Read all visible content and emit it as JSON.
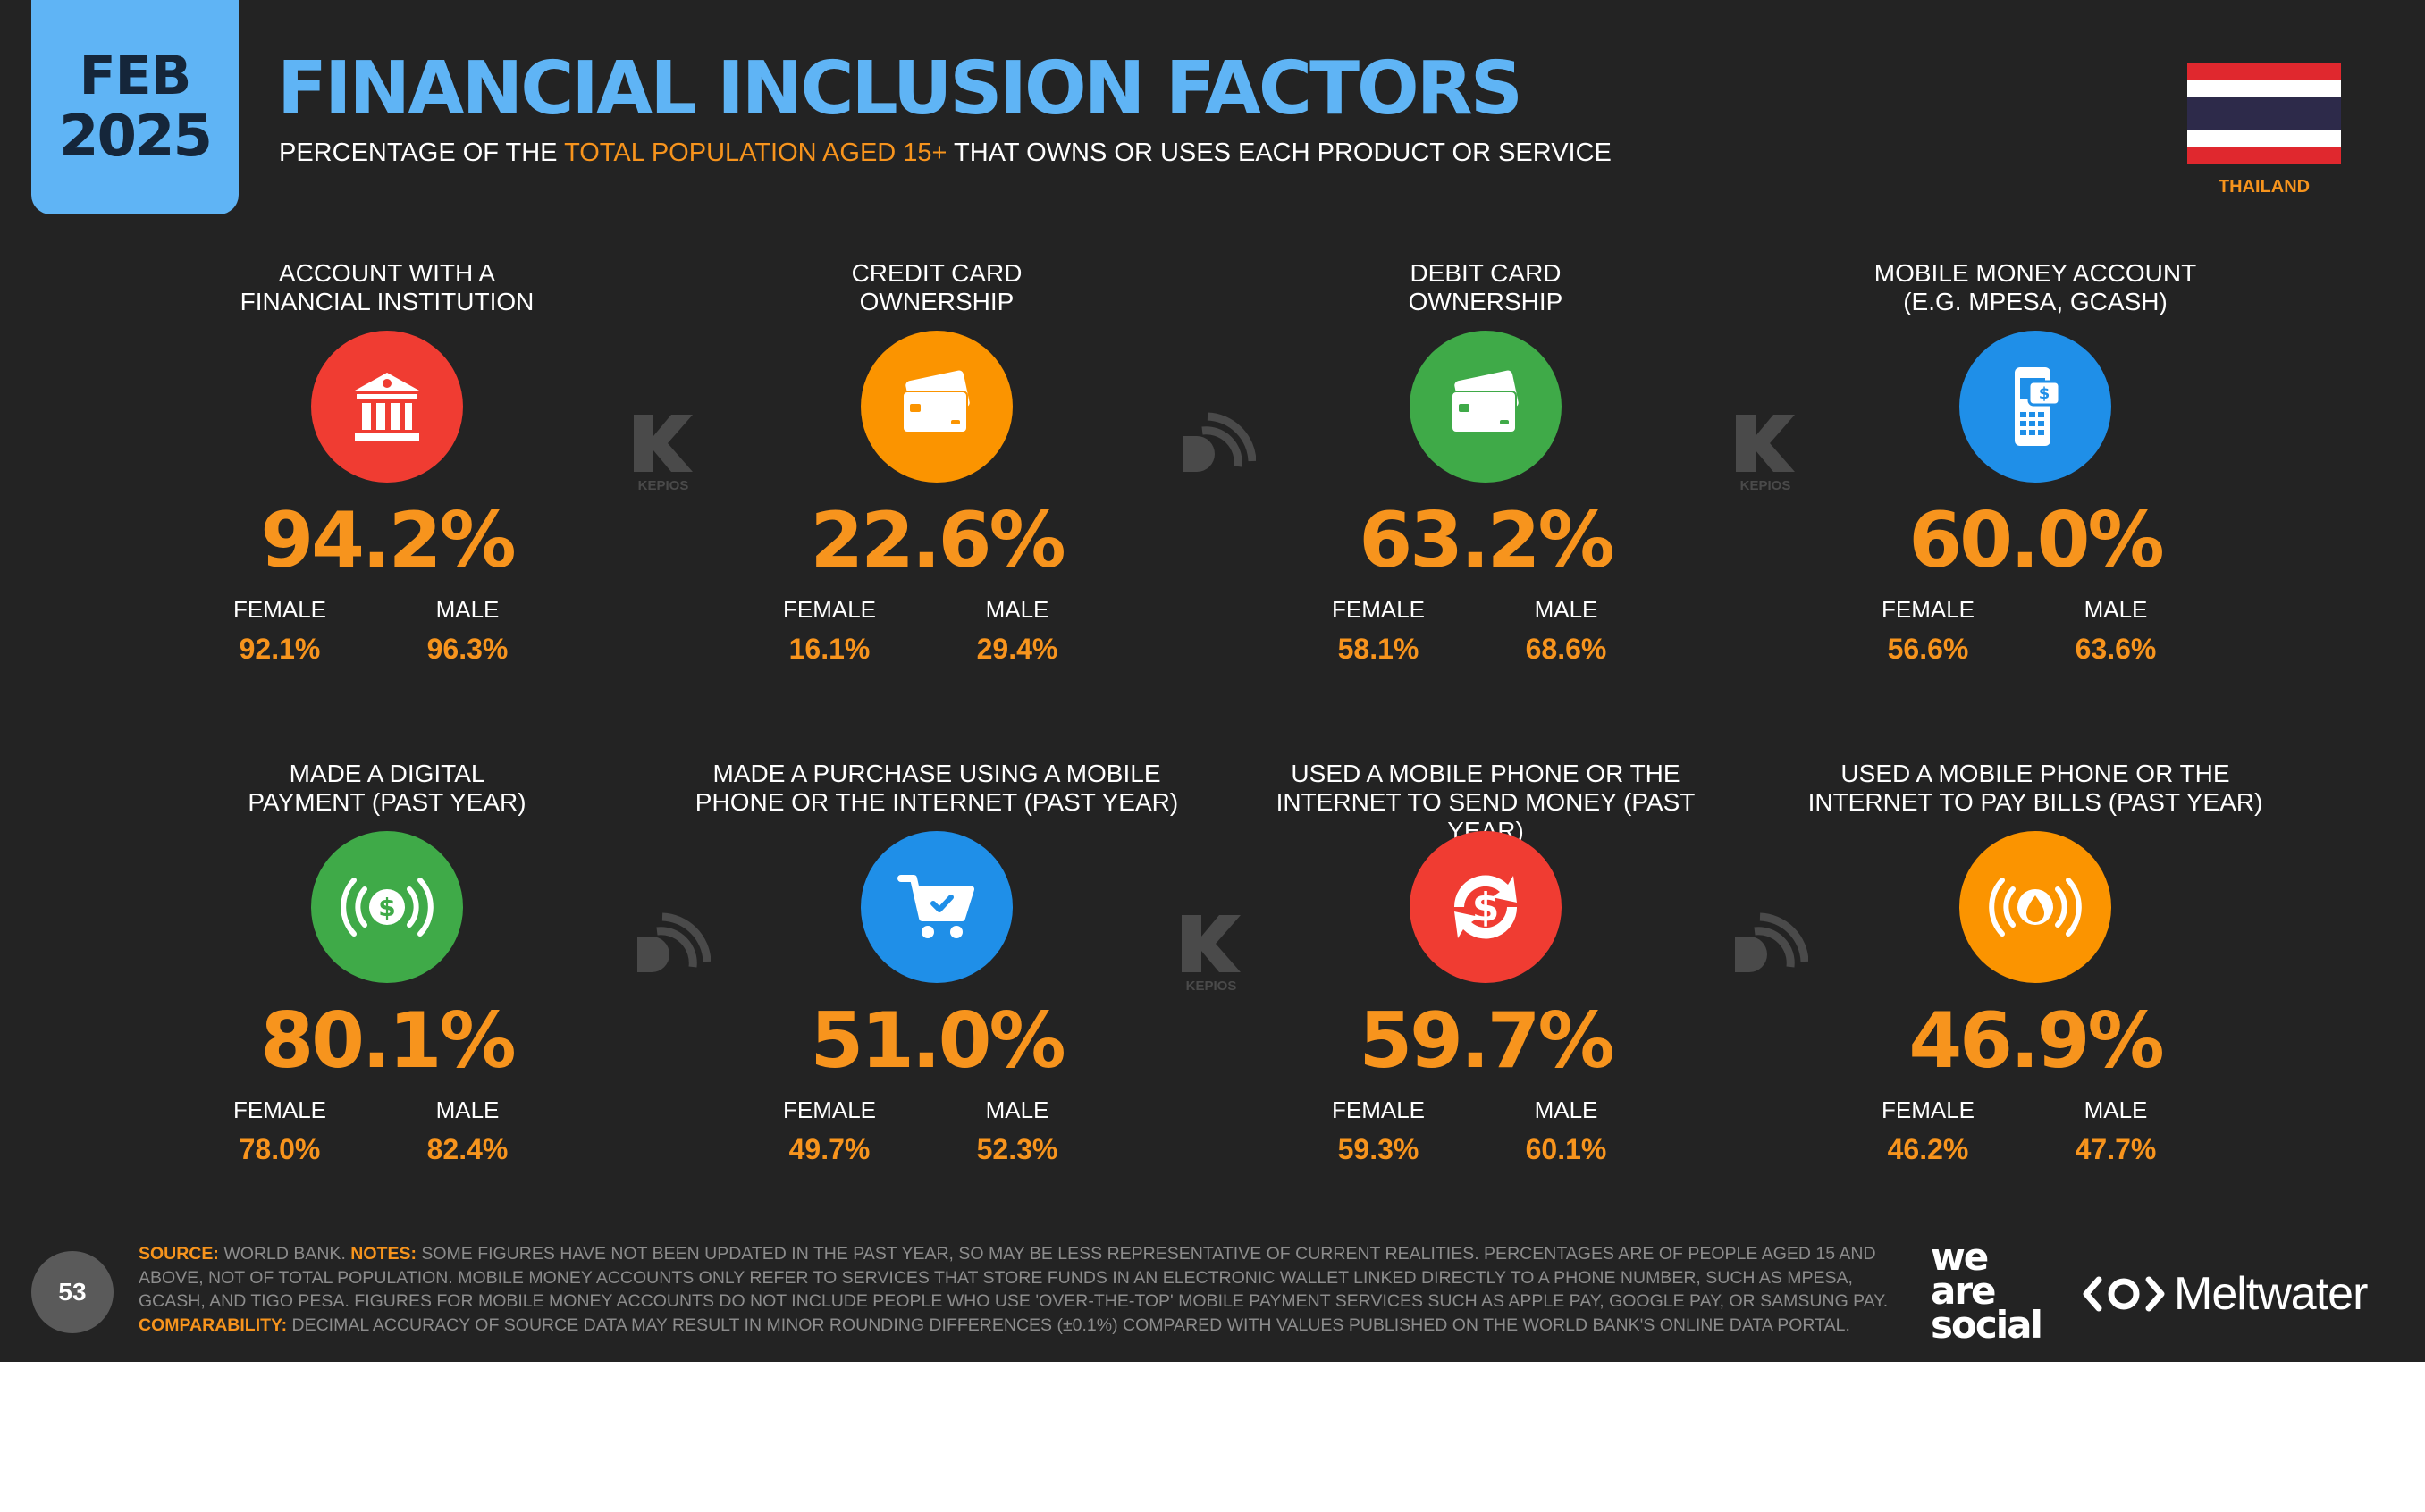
{
  "date_badge": {
    "month": "FEB",
    "year": "2025"
  },
  "title": "FINANCIAL INCLUSION FACTORS",
  "subtitle": {
    "prefix": "PERCENTAGE OF THE ",
    "highlight": "TOTAL POPULATION AGED 15+",
    "suffix": " THAT OWNS OR USES EACH PRODUCT OR SERVICE"
  },
  "country": "THAILAND",
  "colors": {
    "title_blue": "#5fb4f5",
    "accent_orange": "#f7941d",
    "red": "#f03c32",
    "green": "#3faa48",
    "blue": "#1f8fe8",
    "orange": "#fb9400"
  },
  "cards": [
    {
      "label": "ACCOUNT WITH A\nFINANCIAL INSTITUTION",
      "icon": "bank-icon",
      "color": "#f03c32",
      "value": "94.2%",
      "female_label": "FEMALE",
      "female": "92.1%",
      "male_label": "MALE",
      "male": "96.3%"
    },
    {
      "label": "CREDIT CARD\nOWNERSHIP",
      "icon": "credit-card-icon",
      "color": "#fb9400",
      "value": "22.6%",
      "female_label": "FEMALE",
      "female": "16.1%",
      "male_label": "MALE",
      "male": "29.4%"
    },
    {
      "label": "DEBIT CARD\nOWNERSHIP",
      "icon": "debit-card-icon",
      "color": "#3faa48",
      "value": "63.2%",
      "female_label": "FEMALE",
      "female": "58.1%",
      "male_label": "MALE",
      "male": "68.6%"
    },
    {
      "label": "MOBILE MONEY ACCOUNT\n(E.G. MPESA, GCASH)",
      "icon": "mobile-money-icon",
      "color": "#1f8fe8",
      "value": "60.0%",
      "female_label": "FEMALE",
      "female": "56.6%",
      "male_label": "MALE",
      "male": "63.6%"
    },
    {
      "label": "MADE A DIGITAL\nPAYMENT (PAST YEAR)",
      "icon": "digital-payment-icon",
      "color": "#3faa48",
      "value": "80.1%",
      "female_label": "FEMALE",
      "female": "78.0%",
      "male_label": "MALE",
      "male": "82.4%"
    },
    {
      "label": "MADE A PURCHASE USING A MOBILE\nPHONE OR THE INTERNET (PAST YEAR)",
      "icon": "shopping-cart-icon",
      "color": "#1f8fe8",
      "value": "51.0%",
      "female_label": "FEMALE",
      "female": "49.7%",
      "male_label": "MALE",
      "male": "52.3%"
    },
    {
      "label": "USED A MOBILE PHONE OR THE\nINTERNET TO SEND MONEY (PAST YEAR)",
      "icon": "send-money-icon",
      "color": "#f03c32",
      "value": "59.7%",
      "female_label": "FEMALE",
      "female": "59.3%",
      "male_label": "MALE",
      "male": "60.1%"
    },
    {
      "label": "USED A MOBILE PHONE OR THE\nINTERNET TO PAY BILLS (PAST YEAR)",
      "icon": "pay-bills-icon",
      "color": "#fb9400",
      "value": "46.9%",
      "female_label": "FEMALE",
      "female": "46.2%",
      "male_label": "MALE",
      "male": "47.7%"
    }
  ],
  "watermarks": {
    "kepios": "KEPIOS"
  },
  "footer": {
    "page_number": "53",
    "source_label": "SOURCE:",
    "source_text": " WORLD BANK. ",
    "notes_label": "NOTES:",
    "notes_text": " SOME FIGURES HAVE NOT BEEN UPDATED IN THE PAST YEAR, SO MAY BE LESS REPRESENTATIVE OF CURRENT REALITIES. PERCENTAGES ARE OF PEOPLE AGED 15 AND ABOVE, NOT OF TOTAL POPULATION. MOBILE MONEY ACCOUNTS ONLY REFER TO SERVICES THAT STORE FUNDS IN AN ELECTRONIC WALLET LINKED DIRECTLY TO A PHONE NUMBER, SUCH AS MPESA, GCASH, AND TIGO PESA. FIGURES FOR MOBILE MONEY ACCOUNTS DO NOT INCLUDE PEOPLE WHO USE 'OVER-THE-TOP' MOBILE PAYMENT SERVICES SUCH AS APPLE PAY, GOOGLE PAY, OR SAMSUNG PAY. ",
    "comparability_label": "COMPARABILITY:",
    "comparability_text": " DECIMAL ACCURACY OF SOURCE DATA MAY RESULT IN MINOR ROUNDING DIFFERENCES (±0.1%) COMPARED WITH VALUES PUBLISHED ON THE WORLD BANK'S ONLINE DATA PORTAL.",
    "brand_1": [
      "we",
      "are",
      "social"
    ],
    "brand_2": "Meltwater"
  }
}
